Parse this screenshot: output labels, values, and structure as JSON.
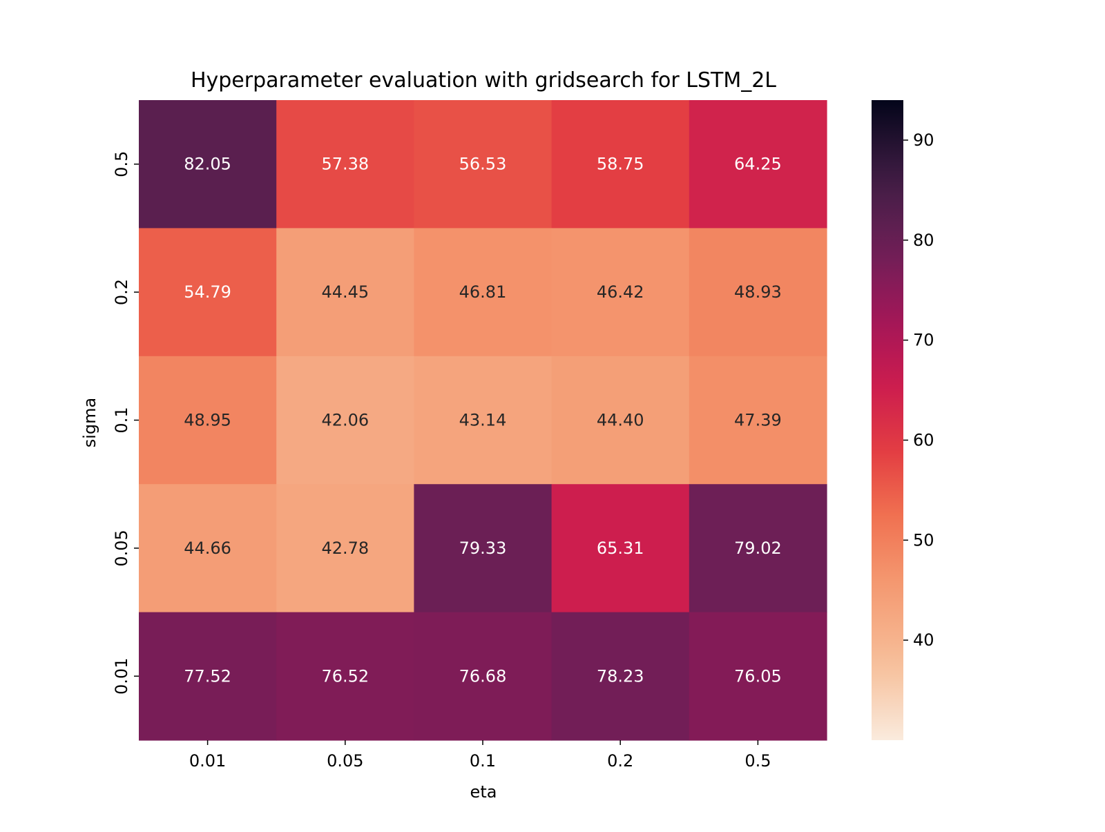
{
  "chart_data": {
    "type": "heatmap",
    "title": "Hyperparameter evaluation with gridsearch for LSTM_2L",
    "xlabel": "eta",
    "ylabel": "sigma",
    "x_categories": [
      "0.01",
      "0.05",
      "0.1",
      "0.2",
      "0.5"
    ],
    "y_categories": [
      "0.5",
      "0.2",
      "0.1",
      "0.05",
      "0.01"
    ],
    "values": [
      [
        82.05,
        57.38,
        56.53,
        58.75,
        64.25
      ],
      [
        54.79,
        44.45,
        46.81,
        46.42,
        48.93
      ],
      [
        48.95,
        42.06,
        43.14,
        44.4,
        47.39
      ],
      [
        44.66,
        42.78,
        79.33,
        65.31,
        79.02
      ],
      [
        77.52,
        76.52,
        76.68,
        78.23,
        76.05
      ]
    ],
    "cell_labels": [
      [
        "82.05",
        "57.38",
        "56.53",
        "58.75",
        "64.25"
      ],
      [
        "54.79",
        "44.45",
        "46.81",
        "46.42",
        "48.93"
      ],
      [
        "48.95",
        "42.06",
        "43.14",
        "44.40",
        "47.39"
      ],
      [
        "44.66",
        "42.78",
        "79.33",
        "65.31",
        "79.02"
      ],
      [
        "77.52",
        "76.52",
        "76.68",
        "78.23",
        "76.05"
      ]
    ],
    "colorbar": {
      "range": [
        30,
        94
      ],
      "ticks": [
        40,
        50,
        60,
        70,
        80,
        90
      ],
      "tick_labels": [
        "40",
        "50",
        "60",
        "70",
        "80",
        "90"
      ]
    },
    "colormap": "rocket_r",
    "grid": false,
    "legend": "colorbar-right"
  }
}
